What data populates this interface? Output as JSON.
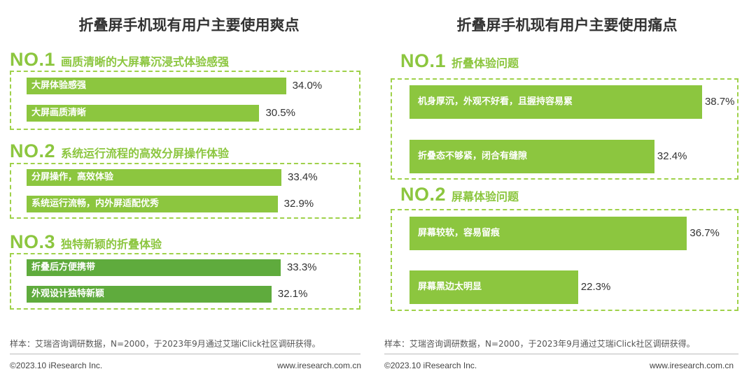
{
  "left": {
    "title": "折叠屏手机现有用户主要使用爽点",
    "sections": [
      {
        "rank": "NO.1",
        "title": "画质清晰的大屏幕沉浸式体验感强"
      },
      {
        "rank": "NO.2",
        "title": "系统运行流程的高效分屏操作体验"
      },
      {
        "rank": "NO.3",
        "title": "独特新颖的折叠体验"
      }
    ],
    "note": "样本：艾瑞咨询调研数据，N=2000，于2023年9月通过艾瑞iClick社区调研获得。",
    "footer_left": "©2023.10 iResearch Inc.",
    "footer_right": "www.iresearch.com.cn"
  },
  "right": {
    "title": "折叠屏手机现有用户主要使用痛点",
    "sections": [
      {
        "rank": "NO.1",
        "title": "折叠体验问题"
      },
      {
        "rank": "NO.2",
        "title": "屏幕体验问题"
      }
    ],
    "note": "样本：艾瑞咨询调研数据，N=2000，于2023年9月通过艾瑞iClick社区调研获得。",
    "footer_left": "©2023.10 iResearch Inc.",
    "footer_right": "www.iresearch.com.cn"
  },
  "chart_data": [
    {
      "type": "bar",
      "orientation": "horizontal",
      "title": "折叠屏手机现有用户主要使用爽点",
      "categories": [
        "大屏体验感强",
        "大屏画质清晰",
        "分屏操作，高效体验",
        "系统运行流畅，内外屏适配优秀",
        "折叠后方便携带",
        "外观设计独特新颖"
      ],
      "values": [
        34.0,
        30.5,
        33.4,
        32.9,
        33.3,
        32.1
      ],
      "labels": [
        "34.0%",
        "30.5%",
        "33.4%",
        "32.9%",
        "33.3%",
        "32.1%"
      ],
      "groups": [
        "NO.1",
        "NO.1",
        "NO.2",
        "NO.2",
        "NO.3",
        "NO.3"
      ],
      "unit": "%",
      "colors": {
        "light": "#8cc63f",
        "dark": "#5fab3d"
      }
    },
    {
      "type": "bar",
      "orientation": "horizontal",
      "title": "折叠屏手机现有用户主要使用痛点",
      "categories": [
        "机身厚沉，外观不好看，且握持容易累",
        "折叠态不够紧，闭合有缝隙",
        "屏幕较软，容易留痕",
        "屏幕黑边太明显"
      ],
      "values": [
        38.7,
        32.4,
        36.7,
        22.3
      ],
      "labels": [
        "38.7%",
        "32.4%",
        "36.7%",
        "22.3%"
      ],
      "groups": [
        "NO.1",
        "NO.1",
        "NO.2",
        "NO.2"
      ],
      "unit": "%",
      "colors": {
        "bar": "#8cc63f"
      }
    }
  ]
}
